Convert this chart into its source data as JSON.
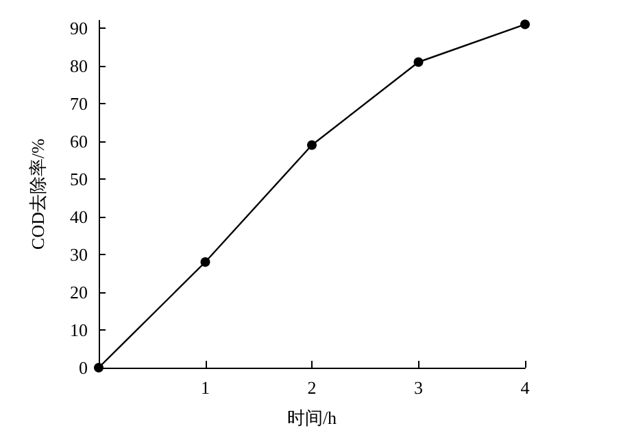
{
  "chart_data": {
    "type": "line",
    "xlabel": "时间/h",
    "ylabel": "COD去除率/%",
    "x": [
      0,
      1,
      2,
      3,
      4
    ],
    "series": [
      {
        "color": "#000000",
        "values": [
          0,
          28,
          59,
          81,
          91
        ]
      }
    ],
    "xlim": [
      0,
      4
    ],
    "xticks": [
      1,
      2,
      3,
      4
    ],
    "ylim": [
      0,
      92
    ],
    "yticks": [
      0,
      10,
      20,
      30,
      40,
      50,
      60,
      70,
      80,
      90
    ],
    "grid": false,
    "marker": "circle",
    "line_style": "solid"
  }
}
